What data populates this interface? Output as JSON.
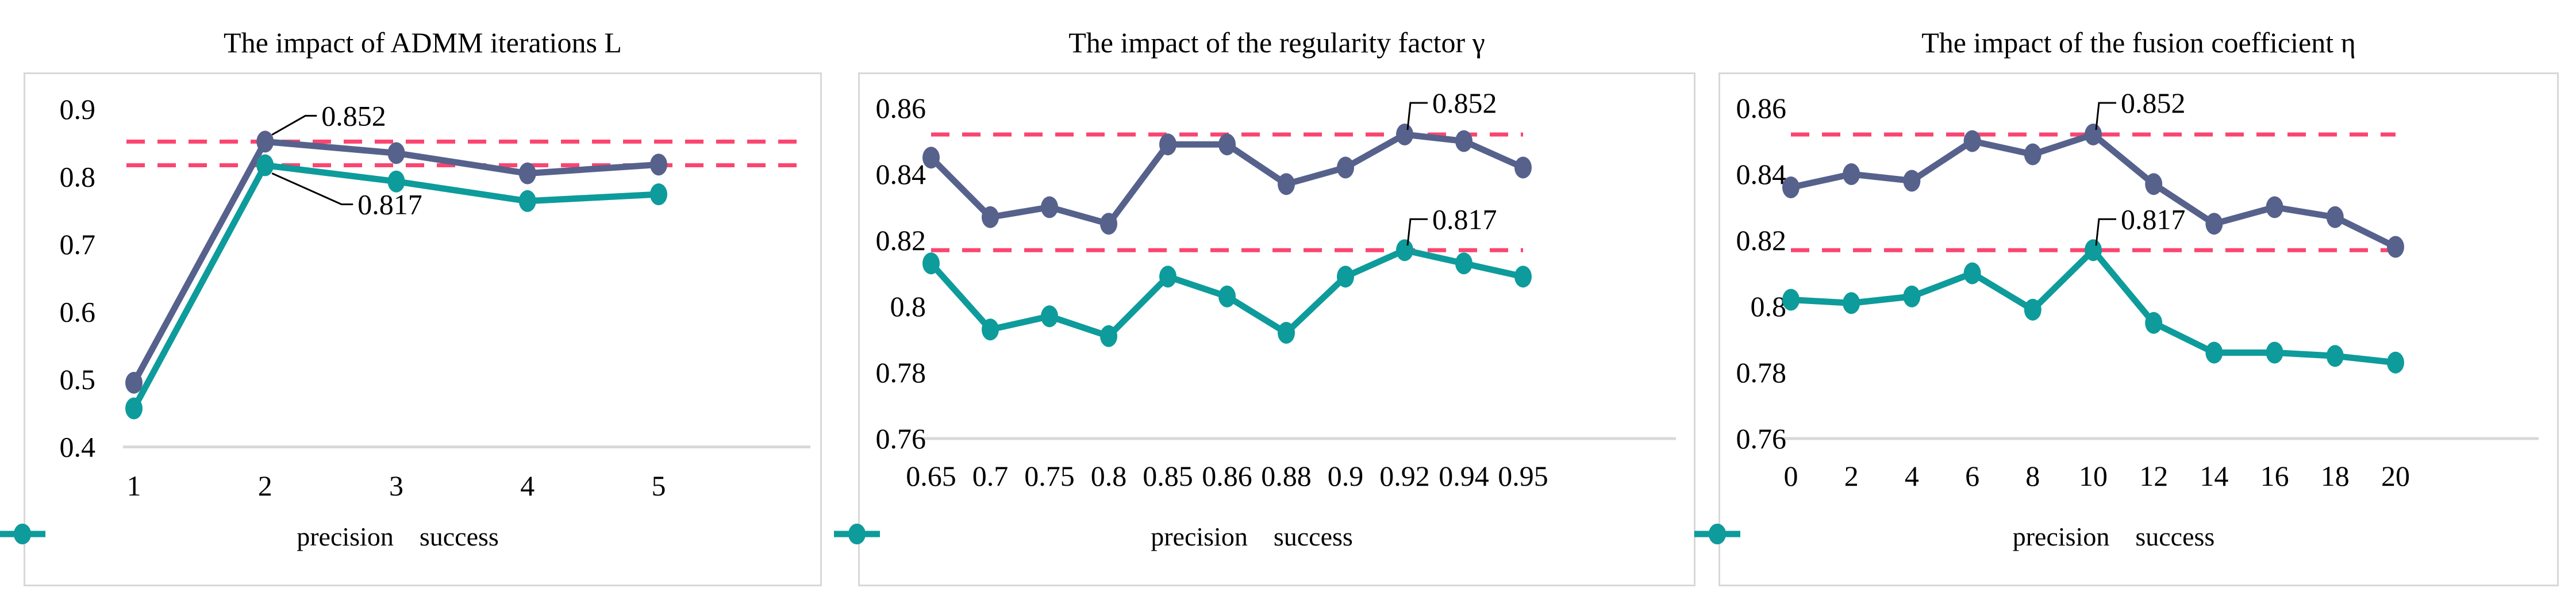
{
  "colors": {
    "precision": "#56628C",
    "success": "#0E9B9B",
    "reference_dashed": "#FB4570",
    "axis_line": "#D9D9D9",
    "panel_border": "#D8D8D8",
    "text": "#000000"
  },
  "chart_data": [
    {
      "type": "line",
      "title": "The impact of ADMM iterations L",
      "categories": [
        "1",
        "2",
        "3",
        "4",
        "5"
      ],
      "series": [
        {
          "name": "precision",
          "values": [
            0.495,
            0.852,
            0.835,
            0.805,
            0.818
          ]
        },
        {
          "name": "success",
          "values": [
            0.457,
            0.817,
            0.793,
            0.764,
            0.774
          ]
        }
      ],
      "ylim": [
        0.4,
        0.9
      ],
      "yticks": [
        "0.9",
        "0.8",
        "0.7",
        "0.6",
        "0.5",
        "0.4"
      ],
      "ytick_values": [
        0.9,
        0.8,
        0.7,
        0.6,
        0.5,
        0.4
      ],
      "ref_lines": [
        0.852,
        0.817
      ],
      "annotations": [
        {
          "text": "0.852",
          "series": "precision",
          "index": 1
        },
        {
          "text": "0.817",
          "series": "success",
          "index": 1
        }
      ],
      "legend": [
        "precision",
        "success"
      ],
      "legend_position": "bottom",
      "grid": false
    },
    {
      "type": "line",
      "title": "The impact of the regularity factor γ",
      "categories": [
        "0.65",
        "0.7",
        "0.75",
        "0.8",
        "0.85",
        "0.86",
        "0.88",
        "0.9",
        "0.92",
        "0.94",
        "0.95"
      ],
      "series": [
        {
          "name": "precision",
          "values": [
            0.845,
            0.827,
            0.83,
            0.825,
            0.849,
            0.849,
            0.837,
            0.842,
            0.852,
            0.85,
            0.842
          ]
        },
        {
          "name": "success",
          "values": [
            0.813,
            0.793,
            0.797,
            0.791,
            0.809,
            0.803,
            0.792,
            0.809,
            0.817,
            0.813,
            0.809
          ]
        }
      ],
      "ylim": [
        0.76,
        0.86
      ],
      "yticks": [
        "0.86",
        "0.84",
        "0.82",
        "0.8",
        "0.78",
        "0.76"
      ],
      "ytick_values": [
        0.86,
        0.84,
        0.82,
        0.8,
        0.78,
        0.76
      ],
      "ref_lines": [
        0.852,
        0.817
      ],
      "annotations": [
        {
          "text": "0.852",
          "series": "precision",
          "index": 8
        },
        {
          "text": "0.817",
          "series": "success",
          "index": 8
        }
      ],
      "legend": [
        "precision",
        "success"
      ],
      "legend_position": "bottom",
      "grid": false
    },
    {
      "type": "line",
      "title": "The impact of the fusion coefficient η",
      "categories": [
        "0",
        "2",
        "4",
        "6",
        "8",
        "10",
        "12",
        "14",
        "16",
        "18",
        "20"
      ],
      "series": [
        {
          "name": "precision",
          "values": [
            0.836,
            0.84,
            0.838,
            0.85,
            0.846,
            0.852,
            0.837,
            0.825,
            0.83,
            0.827,
            0.818
          ]
        },
        {
          "name": "success",
          "values": [
            0.802,
            0.801,
            0.803,
            0.81,
            0.799,
            0.817,
            0.795,
            0.786,
            0.786,
            0.785,
            0.783
          ]
        }
      ],
      "ylim": [
        0.76,
        0.86
      ],
      "yticks": [
        "0.86",
        "0.84",
        "0.82",
        "0.8",
        "0.78",
        "0.76"
      ],
      "ytick_values": [
        0.86,
        0.84,
        0.82,
        0.8,
        0.78,
        0.76
      ],
      "ref_lines": [
        0.852,
        0.817
      ],
      "annotations": [
        {
          "text": "0.852",
          "series": "precision",
          "index": 5
        },
        {
          "text": "0.817",
          "series": "success",
          "index": 5
        }
      ],
      "legend": [
        "precision",
        "success"
      ],
      "legend_position": "bottom",
      "grid": false
    }
  ]
}
